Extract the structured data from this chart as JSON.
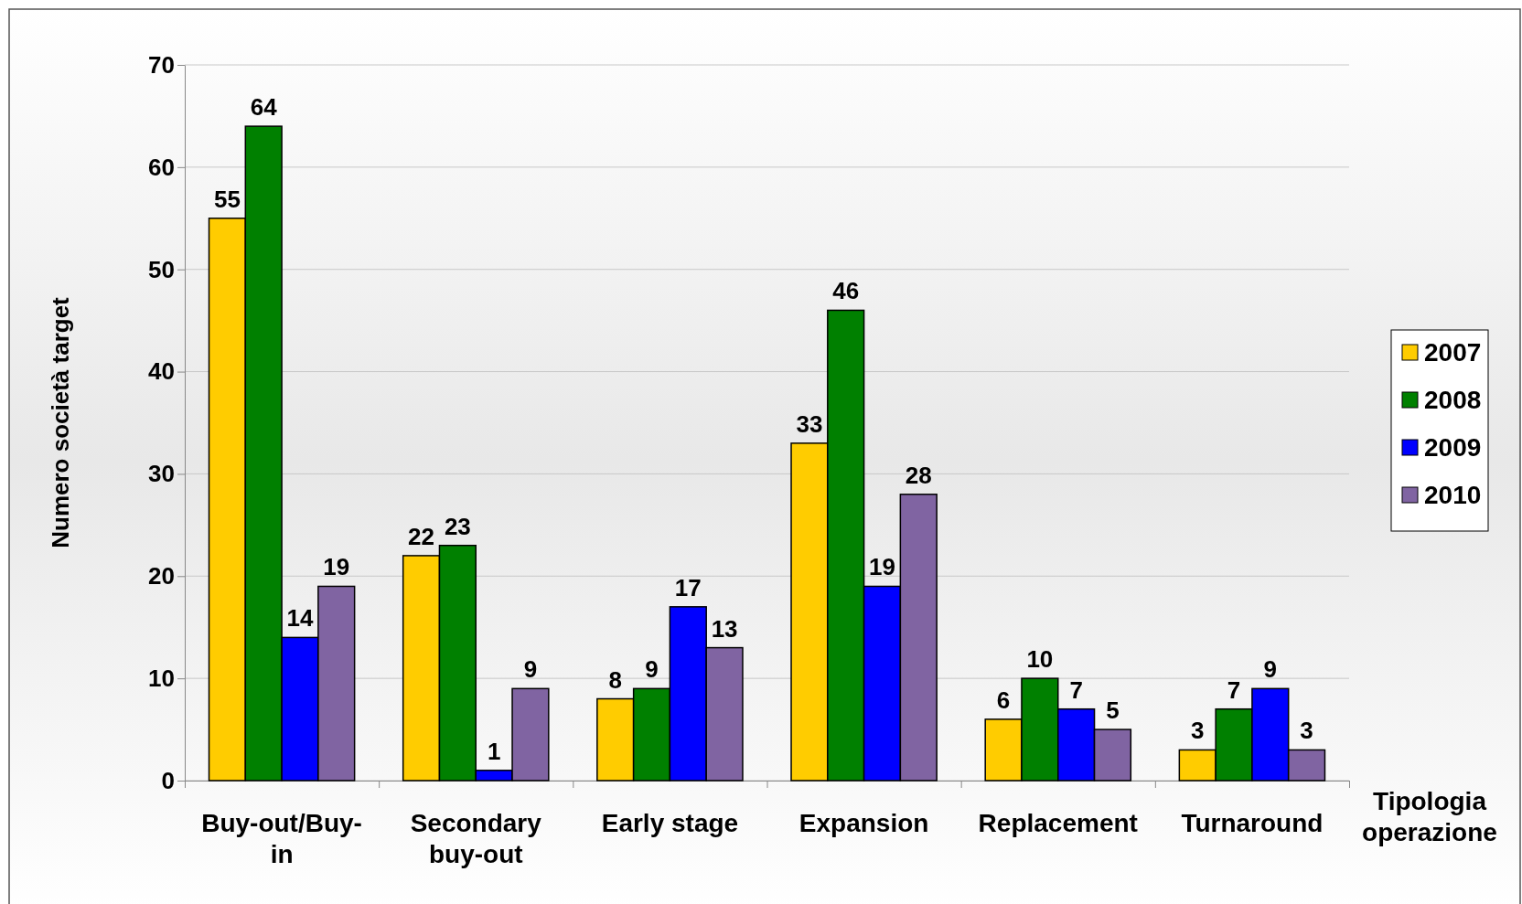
{
  "chart_data": {
    "type": "bar",
    "ylabel": "Numero società target",
    "xlabel": "Tipologia operazione",
    "categories": [
      "Buy-out/Buy-in",
      "Secondary buy-out",
      "Early stage",
      "Expansion",
      "Replacement",
      "Turnaround"
    ],
    "series": [
      {
        "name": "2007",
        "color": "#ffcc00",
        "values": [
          55,
          22,
          8,
          33,
          6,
          3
        ]
      },
      {
        "name": "2008",
        "color": "#008000",
        "values": [
          64,
          23,
          9,
          46,
          10,
          7
        ]
      },
      {
        "name": "2009",
        "color": "#0000ff",
        "values": [
          14,
          1,
          17,
          19,
          7,
          9
        ]
      },
      {
        "name": "2010",
        "color": "#8064a2",
        "values": [
          19,
          9,
          13,
          28,
          5,
          3
        ]
      }
    ],
    "ylim": [
      0,
      70
    ],
    "yticks": [
      0,
      10,
      20,
      30,
      40,
      50,
      60,
      70
    ],
    "grid": "y",
    "legend": "right",
    "data_labels": true
  }
}
